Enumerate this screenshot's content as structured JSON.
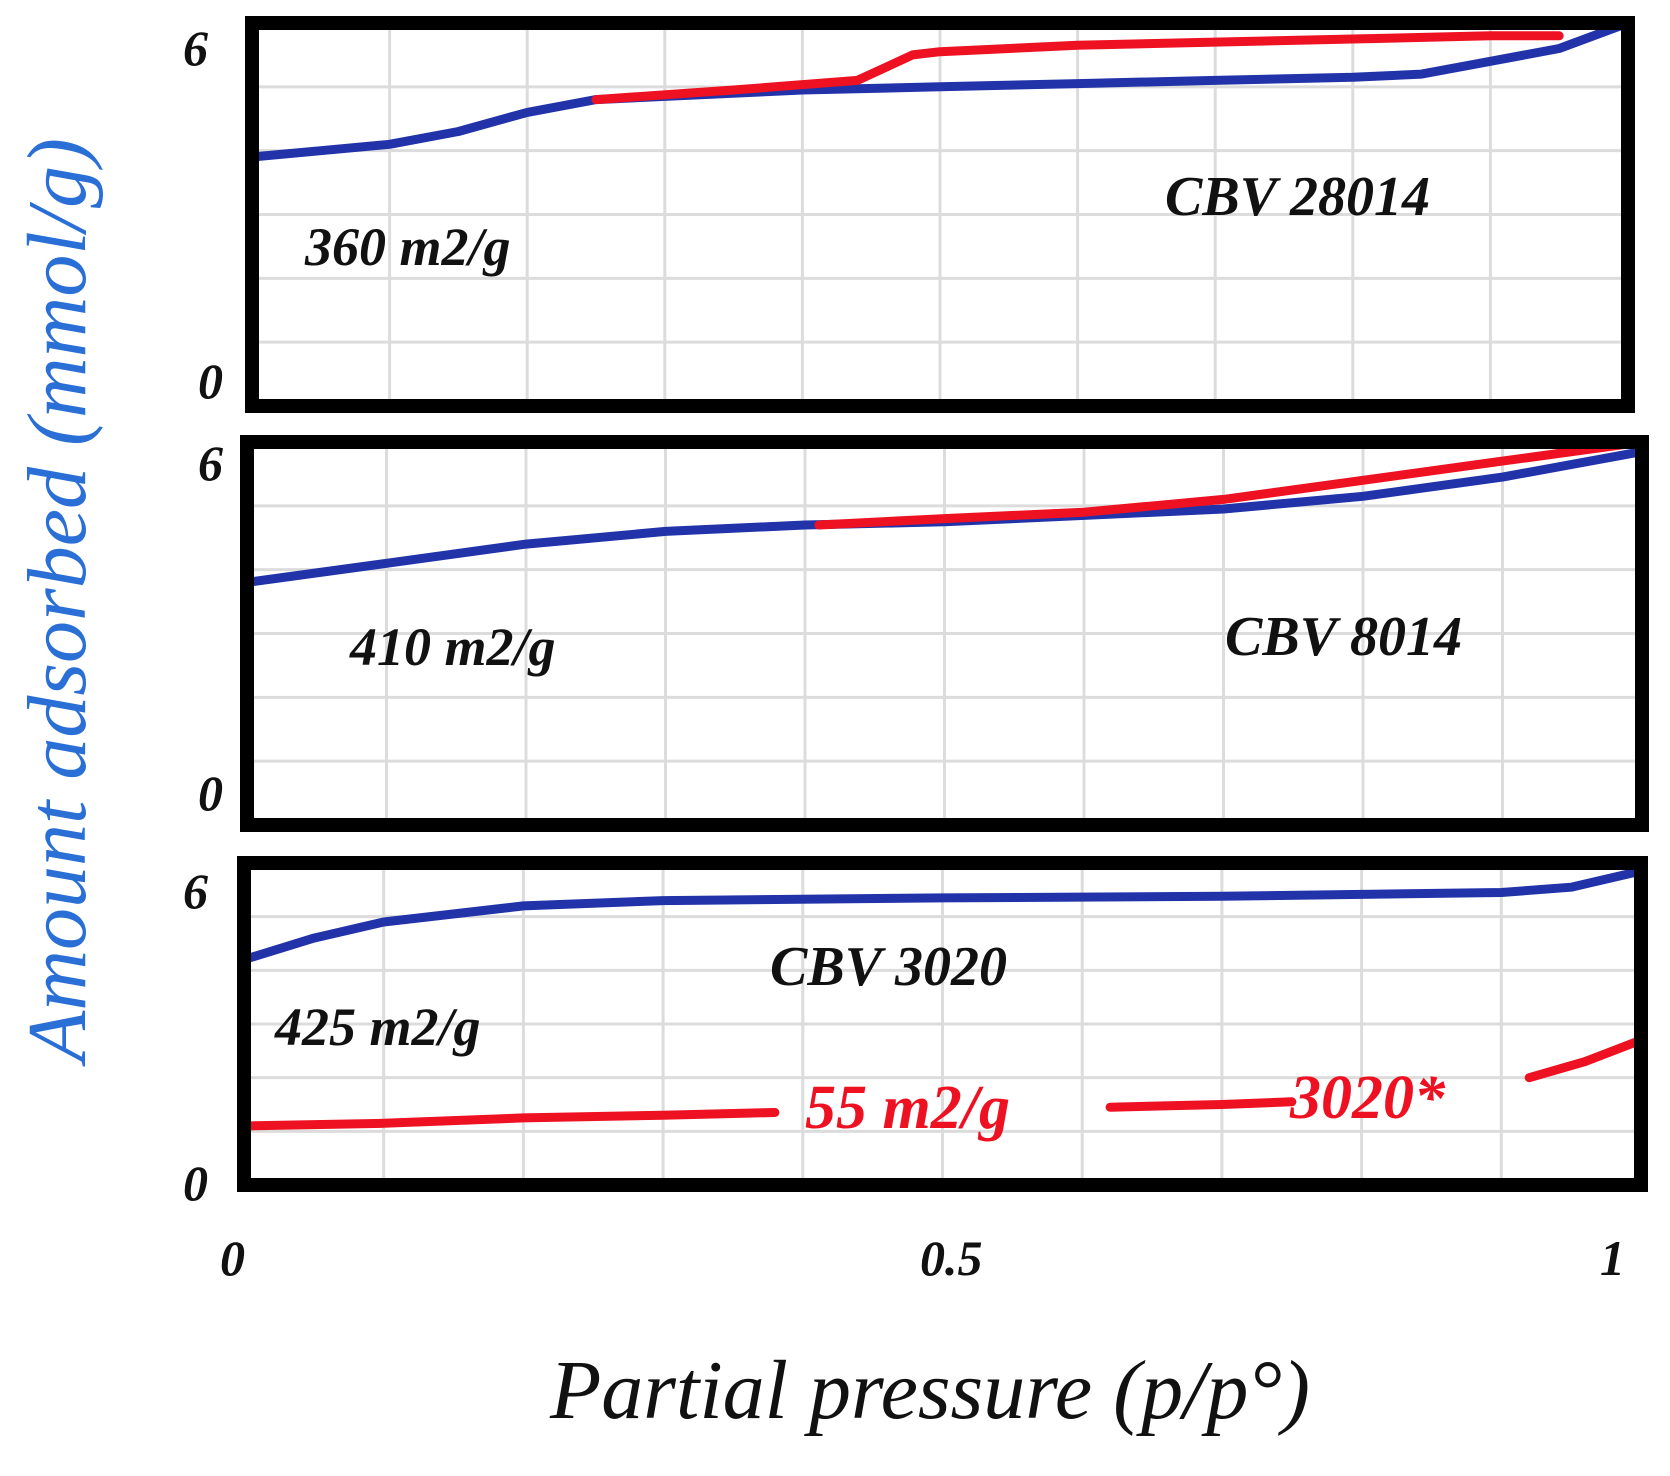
{
  "chart_data": {
    "type": "line",
    "ylabel": "Amount adsorbed (mmol/g)",
    "xlabel": "Partial pressure (p/p°)",
    "xlim": [
      0,
      1
    ],
    "ylim": [
      0,
      6
    ],
    "x_ticks": [
      "0",
      "0.5",
      "1"
    ],
    "y_ticks": [
      "0",
      "6"
    ],
    "colors": {
      "blue": "#2233aa",
      "red": "#ee1122",
      "ylabel": "#2a6fd6",
      "frame": "#000000"
    },
    "panels": [
      {
        "label": "CBV 28014",
        "area_label": "360 m2/g",
        "series": [
          {
            "name": "blue",
            "color": "#2233aa",
            "points": [
              [
                0,
                3.9
              ],
              [
                0.05,
                4.0
              ],
              [
                0.1,
                4.1
              ],
              [
                0.15,
                4.3
              ],
              [
                0.2,
                4.6
              ],
              [
                0.25,
                4.8
              ],
              [
                0.3,
                4.85
              ],
              [
                0.4,
                4.95
              ],
              [
                0.5,
                5.0
              ],
              [
                0.6,
                5.05
              ],
              [
                0.7,
                5.1
              ],
              [
                0.8,
                5.15
              ],
              [
                0.85,
                5.2
              ],
              [
                0.9,
                5.4
              ],
              [
                0.95,
                5.6
              ],
              [
                1.0,
                6.0
              ]
            ]
          },
          {
            "name": "red",
            "color": "#ee1122",
            "points": [
              [
                0.25,
                4.8
              ],
              [
                0.35,
                4.95
              ],
              [
                0.44,
                5.1
              ],
              [
                0.46,
                5.3
              ],
              [
                0.48,
                5.5
              ],
              [
                0.5,
                5.55
              ],
              [
                0.6,
                5.65
              ],
              [
                0.7,
                5.7
              ],
              [
                0.8,
                5.75
              ],
              [
                0.9,
                5.8
              ],
              [
                0.95,
                5.8
              ]
            ]
          }
        ]
      },
      {
        "label": "CBV 8014",
        "area_label": "410 m2/g",
        "series": [
          {
            "name": "blue",
            "color": "#2233aa",
            "points": [
              [
                0,
                3.8
              ],
              [
                0.1,
                4.1
              ],
              [
                0.2,
                4.4
              ],
              [
                0.3,
                4.6
              ],
              [
                0.4,
                4.7
              ],
              [
                0.5,
                4.75
              ],
              [
                0.6,
                4.85
              ],
              [
                0.7,
                4.95
              ],
              [
                0.8,
                5.15
              ],
              [
                0.9,
                5.45
              ],
              [
                1.0,
                5.85
              ]
            ]
          },
          {
            "name": "red",
            "color": "#ee1122",
            "points": [
              [
                0.41,
                4.7
              ],
              [
                0.5,
                4.8
              ],
              [
                0.6,
                4.9
              ],
              [
                0.65,
                5.0
              ],
              [
                0.7,
                5.1
              ],
              [
                0.8,
                5.4
              ],
              [
                0.9,
                5.7
              ],
              [
                1.0,
                6.0
              ]
            ]
          }
        ]
      },
      {
        "label": "CBV 3020",
        "area_label": "425 m2/g",
        "series": [
          {
            "name": "blue",
            "color": "#2233aa",
            "points": [
              [
                0,
                4.2
              ],
              [
                0.05,
                4.6
              ],
              [
                0.1,
                4.9
              ],
              [
                0.2,
                5.2
              ],
              [
                0.3,
                5.3
              ],
              [
                0.5,
                5.35
              ],
              [
                0.7,
                5.38
              ],
              [
                0.9,
                5.45
              ],
              [
                0.95,
                5.55
              ],
              [
                1.0,
                5.85
              ]
            ]
          },
          {
            "name": "red",
            "color": "#ee1122",
            "segments": [
              [
                [
                  0,
                  1.1
                ],
                [
                  0.1,
                  1.15
                ],
                [
                  0.2,
                  1.25
                ],
                [
                  0.3,
                  1.3
                ],
                [
                  0.38,
                  1.35
                ]
              ],
              [
                [
                  0.62,
                  1.45
                ],
                [
                  0.7,
                  1.5
                ],
                [
                  0.75,
                  1.55
                ]
              ],
              [
                [
                  0.92,
                  2.0
                ],
                [
                  0.96,
                  2.3
                ],
                [
                  1.0,
                  2.7
                ]
              ]
            ]
          }
        ],
        "annotations": [
          {
            "text": "55 m2/g",
            "color": "#ee1122"
          },
          {
            "text": "3020*",
            "color": "#ee1122"
          }
        ]
      }
    ]
  }
}
